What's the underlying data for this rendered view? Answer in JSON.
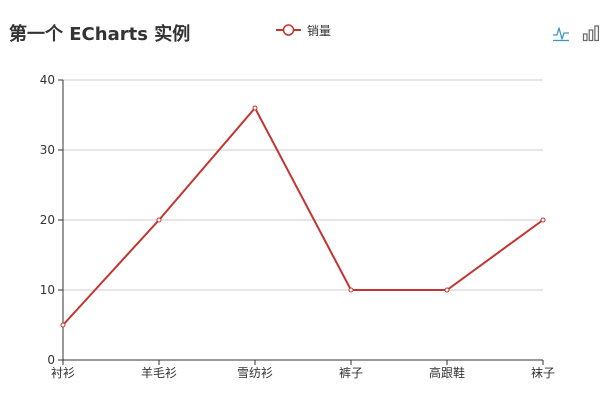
{
  "title": "第一个 ECharts 实例",
  "toolbox": {
    "line_icon": "line-chart-icon",
    "bar_icon": "bar-chart-icon"
  },
  "colors": {
    "series": "#c23531",
    "axis": "#333333",
    "grid": "#cccccc",
    "text": "#333333"
  },
  "chart_data": {
    "type": "line",
    "title": "第一个 ECharts 实例",
    "categories": [
      "衬衫",
      "羊毛衫",
      "雪纺衫",
      "裤子",
      "高跟鞋",
      "袜子"
    ],
    "series": [
      {
        "name": "销量",
        "values": [
          5,
          20,
          36,
          10,
          10,
          20
        ]
      }
    ],
    "xlabel": "",
    "ylabel": "",
    "ylim": [
      0,
      40
    ],
    "yticks": [
      0,
      10,
      20,
      30,
      40
    ],
    "grid": true,
    "legend_position": "top-center"
  }
}
